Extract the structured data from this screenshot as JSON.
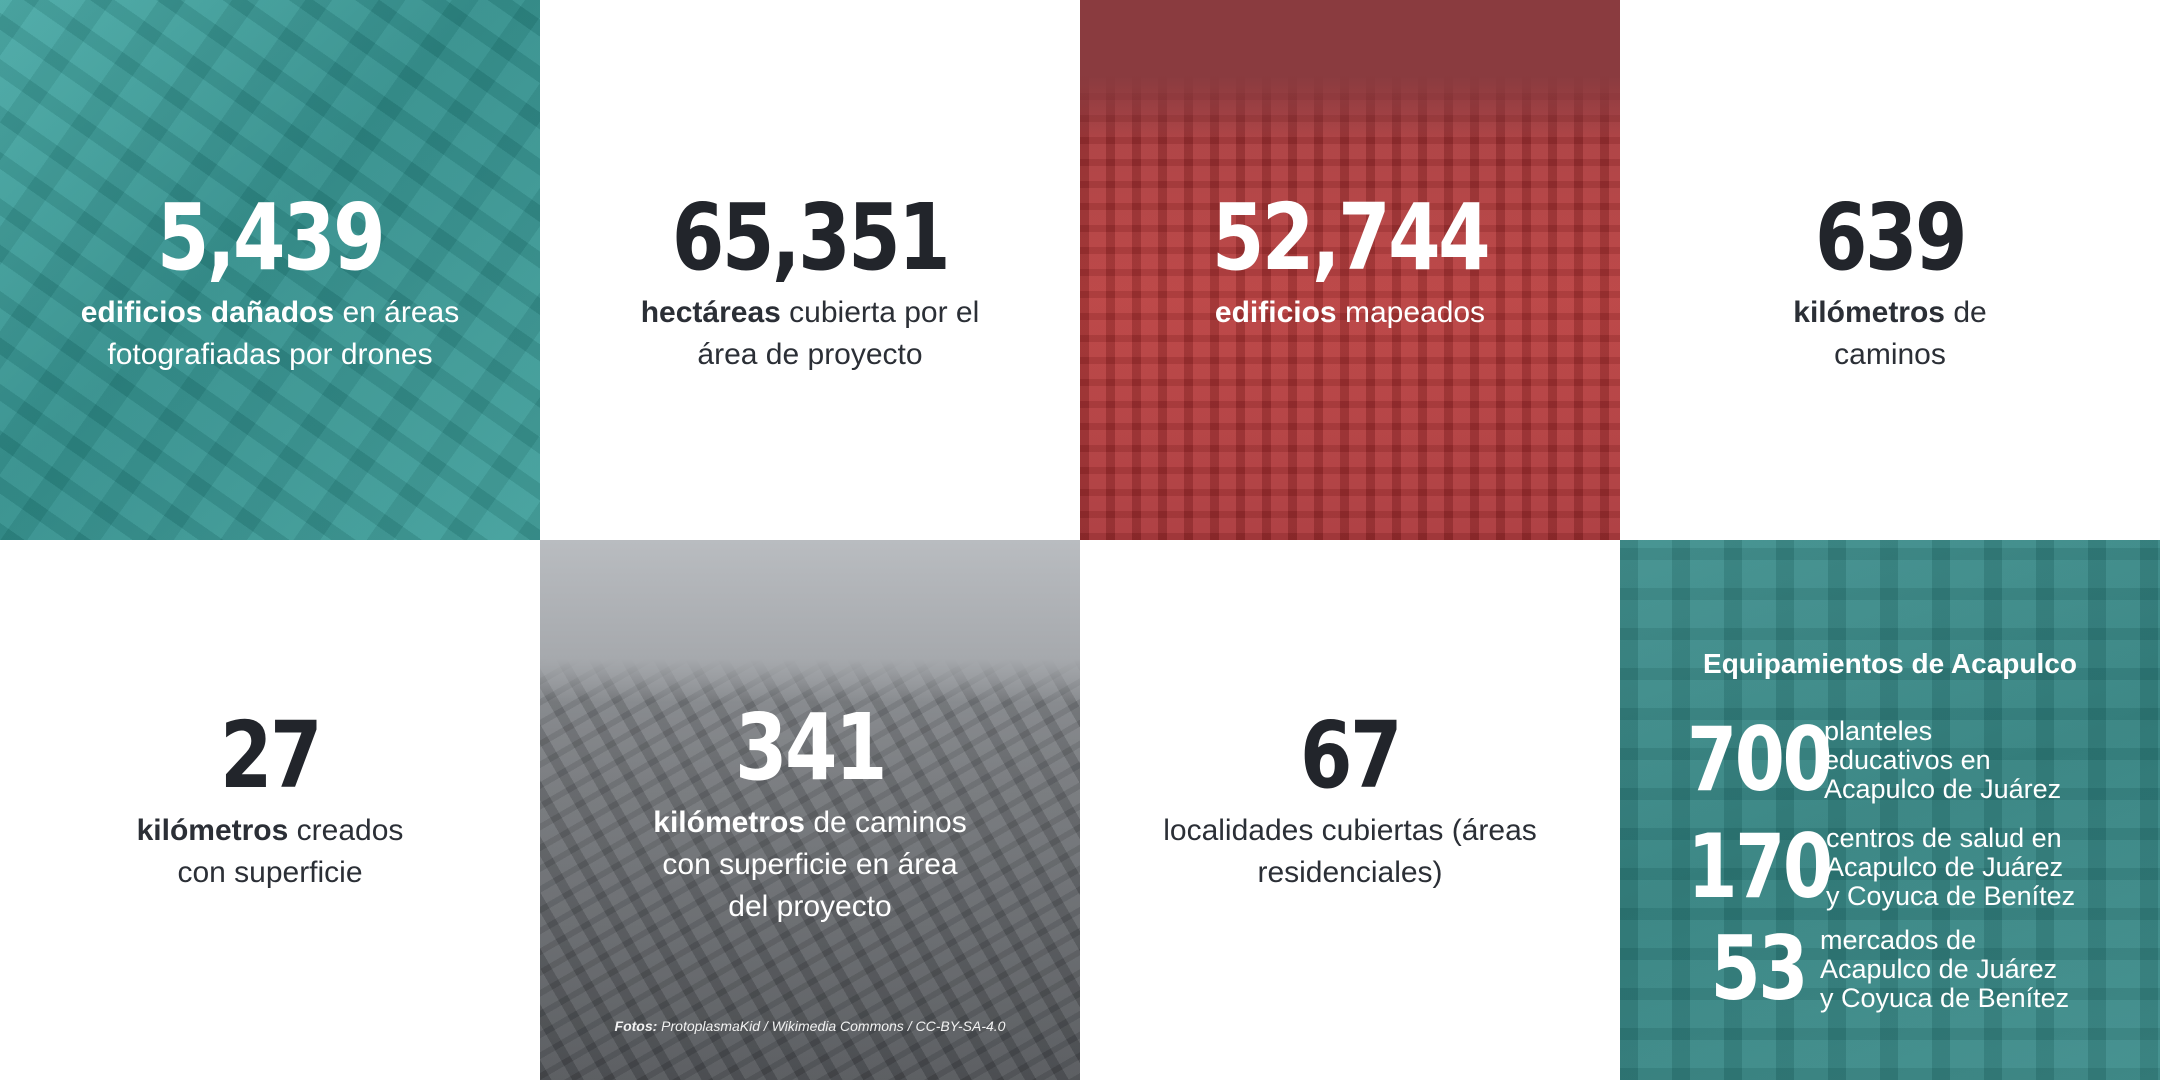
{
  "tiles": [
    {
      "number": "5,439",
      "bold": "edificios dañados",
      "rest": " en áreas fotografiadas por drones"
    },
    {
      "number": "65,351",
      "bold": "hectáreas",
      "rest": " cubierta por el área de proyecto"
    },
    {
      "number": "52,744",
      "bold": "edificios",
      "rest": " mapeados"
    },
    {
      "number": "639",
      "bold": "kilómetros",
      "rest": " de caminos"
    },
    {
      "number": "27",
      "bold": "kilómetros",
      "rest": " creados con superficie"
    },
    {
      "number": "341",
      "bold": "kilómetros",
      "rest": " de caminos con superficie en área del proyecto"
    },
    {
      "number": "67",
      "bold": "",
      "rest": "localidades cubiertas (áreas residenciales)"
    }
  ],
  "credit": {
    "label": "Fotos:",
    "text": " ProtoplasmaKid / Wikimedia Commons / CC-BY-SA-4.0"
  },
  "equipamientos": {
    "title": "Equipamientos de Acapulco",
    "rows": [
      {
        "number": "700",
        "line1": "planteles",
        "line2": "educativos en",
        "line3": "Acapulco de Juárez"
      },
      {
        "number": "170",
        "line1": "centros de salud en",
        "line2": "Acapulco de Juárez",
        "line3": "y Coyuca de Benítez"
      },
      {
        "number": "53",
        "line1": "mercados de",
        "line2": "Acapulco de Juárez",
        "line3": "y Coyuca de Benítez"
      }
    ]
  },
  "colors": {
    "teal": "#3e9e9a",
    "red": "#b73838",
    "gray": "#6f7276",
    "dark_text": "#22252b"
  }
}
